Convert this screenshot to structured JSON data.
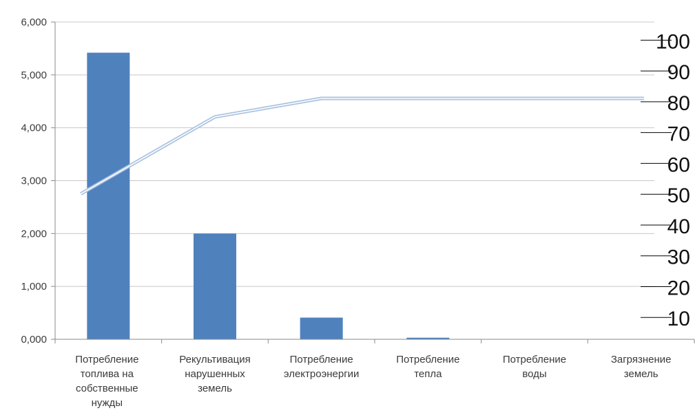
{
  "chart_data": {
    "type": "bar",
    "categories": [
      [
        "Потребление",
        "топлива на",
        "собственные",
        "нужды"
      ],
      [
        "Рекультивация",
        "нарушенных",
        "земель"
      ],
      [
        "Потребление",
        "электроэнергии"
      ],
      [
        "Потребление",
        "тепла"
      ],
      [
        "Потребление",
        "воды"
      ],
      [
        "Загрязнение",
        "земель"
      ]
    ],
    "values": [
      5.42,
      2.0,
      0.41,
      0.03,
      0.0,
      0.0
    ],
    "ylim": [
      0,
      6
    ],
    "yticks": [
      "0,000",
      "1,000",
      "2,000",
      "3,000",
      "4,000",
      "5,000",
      "6,000"
    ],
    "line_series": {
      "values": [
        51,
        76,
        82,
        82,
        82,
        82
      ],
      "y2lim": [
        0,
        105
      ],
      "y2ticks": [
        "10",
        "20",
        "30",
        "40",
        "50",
        "60",
        "70",
        "80",
        "90",
        "100"
      ]
    },
    "grid": true,
    "colors": {
      "bar": "#4f81bd",
      "line": "#a9c2e0",
      "grid": "#c8c8c8",
      "axis": "#8a8a8a"
    }
  }
}
